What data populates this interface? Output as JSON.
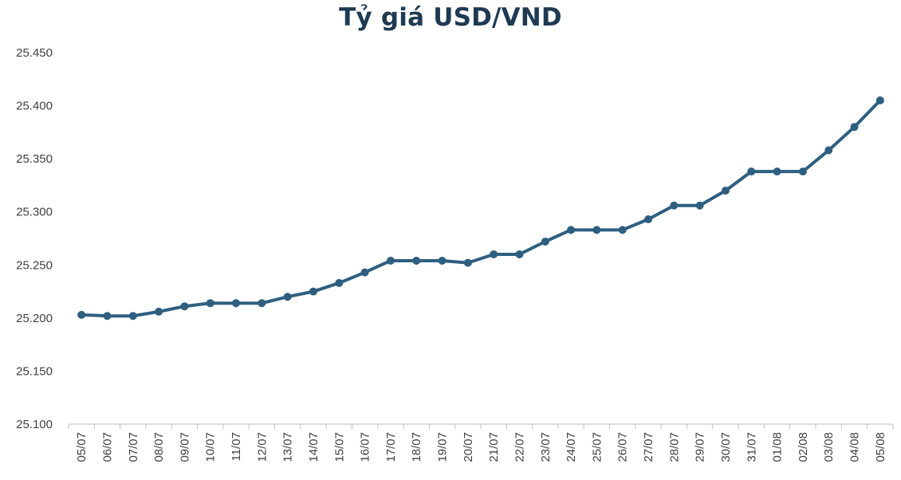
{
  "chart_data": {
    "type": "line",
    "title": "Tỷ giá USD/VND",
    "xlabel": "",
    "ylabel": "",
    "ylim": [
      25100,
      25450
    ],
    "y_tick_labels": [
      "25.100",
      "25.150",
      "25.200",
      "25.250",
      "25.300",
      "25.350",
      "25.400",
      "25.450"
    ],
    "y_tick_values": [
      25100,
      25150,
      25200,
      25250,
      25300,
      25350,
      25400,
      25450
    ],
    "grid": false,
    "legend": "none",
    "line_color": "#2e5f80",
    "categories": [
      "05/07",
      "06/07",
      "07/07",
      "08/07",
      "09/07",
      "10/07",
      "11/07",
      "12/07",
      "13/07",
      "14/07",
      "15/07",
      "16/07",
      "17/07",
      "18/07",
      "19/07",
      "20/07",
      "21/07",
      "22/07",
      "23/07",
      "24/07",
      "25/07",
      "26/07",
      "27/07",
      "28/07",
      "29/07",
      "30/07",
      "31/07",
      "01/08",
      "02/08",
      "03/08",
      "04/08",
      "05/08"
    ],
    "series": [
      {
        "values": [
          25203,
          25202,
          25202,
          25206,
          25211,
          25214,
          25214,
          25214,
          25220,
          25225,
          25233,
          25243,
          25254,
          25254,
          25254,
          25252,
          25260,
          25260,
          25272,
          25283,
          25283,
          25283,
          25293,
          25306,
          25306,
          25320,
          25338,
          25338,
          25338,
          25358,
          25380,
          25405
        ]
      }
    ]
  }
}
